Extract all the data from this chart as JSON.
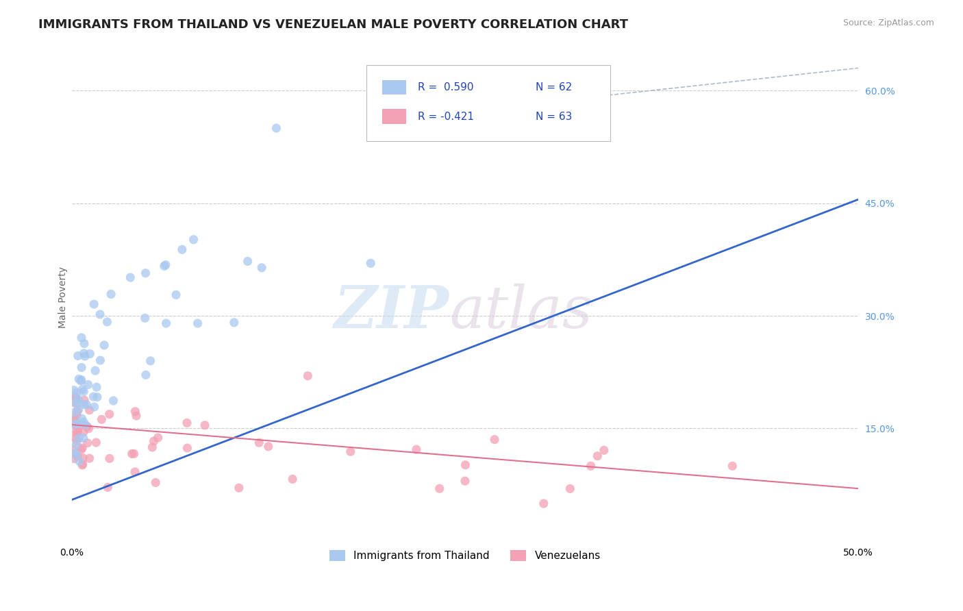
{
  "title": "IMMIGRANTS FROM THAILAND VS VENEZUELAN MALE POVERTY CORRELATION CHART",
  "source": "Source: ZipAtlas.com",
  "ylabel": "Male Poverty",
  "right_yticks": [
    "60.0%",
    "45.0%",
    "30.0%",
    "15.0%"
  ],
  "legend_blue_r": "R =  0.590",
  "legend_blue_n": "N = 62",
  "legend_pink_r": "R = -0.421",
  "legend_pink_n": "N = 63",
  "legend_blue_label": "Immigrants from Thailand",
  "legend_pink_label": "Venezuelans",
  "blue_color": "#A8C8F0",
  "pink_color": "#F4A0B5",
  "blue_line_color": "#3366CC",
  "pink_line_color": "#E07090",
  "dashed_color": "#AABBD0",
  "grid_color": "#CCCCCC",
  "right_tick_color": "#5599DD",
  "xlim": [
    0.0,
    0.5
  ],
  "ylim": [
    0.0,
    0.65
  ],
  "right_ytick_vals": [
    0.6,
    0.45,
    0.3,
    0.15
  ],
  "grid_ytick_vals": [
    0.15,
    0.3,
    0.45,
    0.6
  ],
  "title_fontsize": 13,
  "axis_label_fontsize": 10,
  "blue_line_x0": 0.0,
  "blue_line_y0": 0.055,
  "blue_line_x1": 0.5,
  "blue_line_y1": 0.455,
  "pink_line_x0": 0.0,
  "pink_line_y0": 0.155,
  "pink_line_x1": 0.5,
  "pink_line_y1": 0.07,
  "dashed_line_x0": 0.28,
  "dashed_line_y0": 0.58,
  "dashed_line_x1": 0.5,
  "dashed_line_y1": 0.63
}
